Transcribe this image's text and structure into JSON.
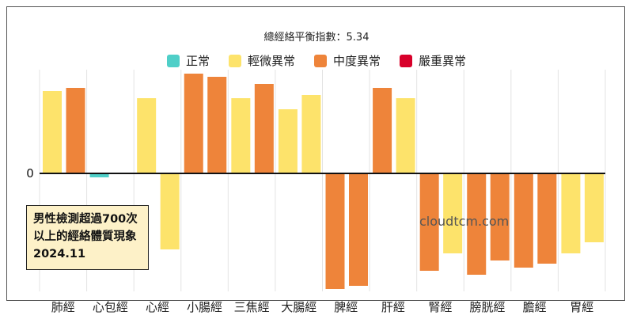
{
  "chart_data": {
    "type": "bar",
    "title": "總經絡平衡指數：5.34",
    "categories": [
      "肺經",
      "心包經",
      "心經",
      "小腸經",
      "三焦經",
      "大腸經",
      "脾經",
      "肝經",
      "腎經",
      "膀胱經",
      "膽經",
      "胃經"
    ],
    "series": [
      {
        "values": [
          104,
          -5,
          95,
          126,
          95,
          81,
          -146,
          108,
          -123,
          -128,
          -119,
          -101
        ],
        "colors": [
          "yellow",
          "teal",
          "yellow",
          "orange",
          "yellow",
          "yellow",
          "orange",
          "orange",
          "orange",
          "orange",
          "orange",
          "yellow"
        ]
      },
      {
        "values": [
          108,
          0,
          -96,
          122,
          113,
          99,
          -142,
          95,
          -101,
          -110,
          -114,
          -87
        ],
        "colors": [
          "orange",
          "none",
          "yellow",
          "orange",
          "orange",
          "yellow",
          "orange",
          "yellow",
          "yellow",
          "orange",
          "orange",
          "yellow"
        ]
      }
    ],
    "yticks": [
      "0"
    ],
    "ylim": [
      -150,
      131
    ],
    "grid": true,
    "legend": {
      "position": "top",
      "items": [
        {
          "label": "正常",
          "color": "#4fcfc8",
          "key": "teal"
        },
        {
          "label": "輕微異常",
          "color": "#fde36b",
          "key": "yellow"
        },
        {
          "label": "中度異常",
          "color": "#ee843a",
          "key": "orange"
        },
        {
          "label": "嚴重異常",
          "color": "#d8002a",
          "key": "red"
        }
      ]
    },
    "annotation": "男性檢測超過700次以上的經絡體質現象 2024.11",
    "watermark": "cloudtcm.com"
  }
}
